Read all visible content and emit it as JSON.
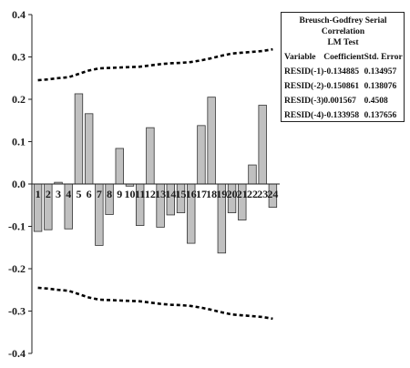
{
  "chart_data": {
    "type": "bar",
    "categories": [
      "1",
      "2",
      "3",
      "4",
      "5",
      "6",
      "7",
      "8",
      "9",
      "10",
      "11",
      "12",
      "13",
      "14",
      "15",
      "16",
      "17",
      "18",
      "19",
      "20",
      "21",
      "22",
      "23",
      "24"
    ],
    "series": [
      {
        "values": [
          -0.112,
          -0.108,
          0.004,
          -0.106,
          0.213,
          0.166,
          -0.145,
          -0.072,
          0.084,
          -0.005,
          -0.098,
          0.133,
          -0.102,
          -0.073,
          -0.068,
          -0.14,
          0.138,
          0.205,
          -0.163,
          -0.068,
          -0.085,
          0.045,
          0.186,
          -0.055
        ],
        "color": "#c0c0c0"
      }
    ],
    "bands": [
      {
        "style": "dashed",
        "color": "#000000",
        "upper": [
          0.245,
          0.247,
          0.25,
          0.252,
          0.26,
          0.268,
          0.273,
          0.274,
          0.275,
          0.276,
          0.277,
          0.28,
          0.283,
          0.285,
          0.286,
          0.288,
          0.292,
          0.297,
          0.303,
          0.308,
          0.31,
          0.312,
          0.314,
          0.318
        ],
        "lower": [
          -0.245,
          -0.247,
          -0.25,
          -0.252,
          -0.26,
          -0.268,
          -0.273,
          -0.274,
          -0.275,
          -0.276,
          -0.277,
          -0.28,
          -0.283,
          -0.285,
          -0.286,
          -0.288,
          -0.292,
          -0.297,
          -0.303,
          -0.308,
          -0.31,
          -0.312,
          -0.314,
          -0.318
        ]
      }
    ],
    "ylim": [
      -0.4,
      0.4
    ],
    "yticks": [
      "0.4",
      "0.3",
      "0.2",
      "0.1",
      "0.0",
      "-0.1",
      "-0.2",
      "-0.3",
      "-0.4"
    ],
    "ytick_values": [
      0.4,
      0.3,
      0.2,
      0.1,
      0.0,
      -0.1,
      -0.2,
      -0.3,
      -0.4
    ],
    "grid": false,
    "title": "",
    "xlabel": "",
    "ylabel": ""
  },
  "test_table": {
    "title_line1": "Breusch-Godfrey Serial Correlation",
    "title_line2": "LM Test",
    "headers": [
      "Variable",
      "Coefficient",
      "Std. Error"
    ],
    "rows": [
      [
        "RESID(-1)",
        "-0.134885",
        "0.134957"
      ],
      [
        "RESID(-2)",
        "-0.150861",
        "0.138076"
      ],
      [
        "RESID(-3)",
        "0.001567",
        "0.4508"
      ],
      [
        "RESID(-4)",
        "-0.133958",
        "0.137656"
      ]
    ]
  }
}
